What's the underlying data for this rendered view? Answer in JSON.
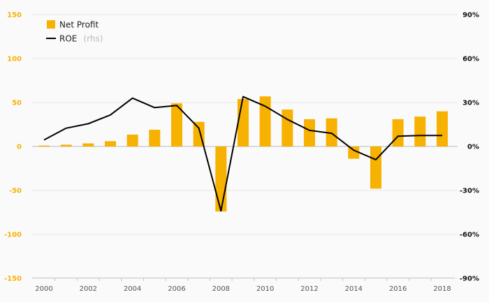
{
  "colors": {
    "bar": "#f7b100",
    "line": "#000000",
    "left_axis": "#f7b100",
    "right_axis": "#111111",
    "grid": "#e6e6e6",
    "zero_line": "#bbbbbb"
  },
  "legend": {
    "net_profit": "Net Profit",
    "roe": "ROE",
    "roe_suffix": "(rhs)"
  },
  "chart_data": {
    "type": "bar",
    "x": [
      2000,
      2001,
      2002,
      2003,
      2004,
      2005,
      2006,
      2007,
      2008,
      2009,
      2010,
      2011,
      2012,
      2013,
      2014,
      2015,
      2016,
      2017,
      2018
    ],
    "x_tick_labels": [
      "2000",
      "2002",
      "2004",
      "2006",
      "2008",
      "2010",
      "2012",
      "2014",
      "2016",
      "2018"
    ],
    "left_axis": {
      "ylim": [
        -150,
        150
      ],
      "ticks": [
        "150",
        "100",
        "50",
        "0",
        "-50",
        "-100",
        "-150"
      ],
      "tick_values": [
        150,
        100,
        50,
        0,
        -50,
        -100,
        -150
      ]
    },
    "right_axis": {
      "ylim": [
        -90,
        90
      ],
      "ticks": [
        "90%",
        "60%",
        "30%",
        "0%",
        "-30%",
        "-60%",
        "-90%"
      ],
      "tick_values": [
        90,
        60,
        30,
        0,
        -30,
        -60,
        -90
      ]
    },
    "series": [
      {
        "name": "Net Profit",
        "type": "bar",
        "axis": "left",
        "values": [
          1,
          2,
          3.5,
          6,
          13.5,
          19,
          49,
          28,
          -74,
          54,
          57,
          42,
          31,
          32,
          -14,
          -48,
          31,
          34,
          40
        ]
      },
      {
        "name": "ROE",
        "type": "line",
        "axis": "right",
        "values": [
          4.5,
          12.5,
          15.5,
          21.5,
          33,
          26.5,
          28,
          12.5,
          -44,
          34,
          27.5,
          18.5,
          11,
          9,
          -2.5,
          -9,
          7,
          7.5,
          7.5
        ]
      }
    ],
    "grid": true,
    "legend_position": "top-left"
  }
}
